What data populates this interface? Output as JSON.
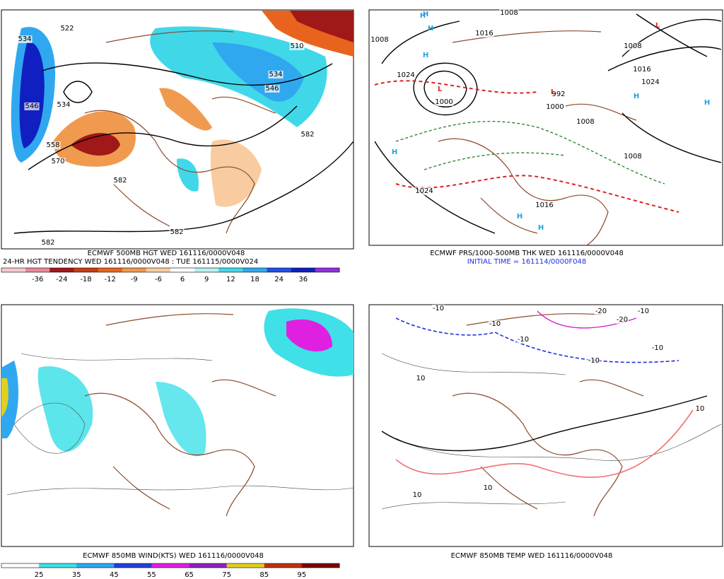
{
  "panels": [
    {
      "captions": [
        "ECMWF 500MB HGT WED 161116/0000V048",
        "24-HR HGT TENDENCY WED 161116/0000V048 : TUE 161115/0000V024"
      ],
      "colorbar": {
        "labels": [
          "-36",
          "-24",
          "-18",
          "-12",
          "-9",
          "-6",
          "6",
          "9",
          "12",
          "18",
          "24",
          "36"
        ],
        "colors": [
          "#f7c8d0",
          "#e8889a",
          "#a01818",
          "#c83c14",
          "#e8641e",
          "#f09a50",
          "#f8cca0",
          "#ffffff",
          "#b8f0f0",
          "#40d8e8",
          "#30a8f0",
          "#2050e8",
          "#1020c0",
          "#9030e0"
        ]
      },
      "contour_labels": [
        "534",
        "522",
        "534",
        "546",
        "558",
        "570",
        "582",
        "582",
        "582",
        "510",
        "534",
        "546",
        "582"
      ]
    },
    {
      "captions": [
        "ECMWF PRS/1000-500MB THK WED 161116/0000V048",
        "INITIAL TIME = 161114/0000F048"
      ],
      "contour_labels": [
        "1008",
        "1008",
        "1016",
        "1024",
        "1000",
        "992",
        "1000",
        "1008",
        "1016",
        "1024",
        "1008",
        "1024",
        "1016",
        "1008"
      ],
      "centers": [
        "H",
        "H",
        "H",
        "H",
        "H",
        "L",
        "L",
        "L",
        "H",
        "H",
        "H",
        "H"
      ]
    },
    {
      "captions": [
        "ECMWF 850MB WIND(KTS) WED 161116/0000V048"
      ],
      "colorbar": {
        "labels": [
          "25",
          "35",
          "45",
          "55",
          "65",
          "75",
          "85",
          "95"
        ],
        "colors": [
          "#ffffff",
          "#40e0e8",
          "#30a8f0",
          "#2040d8",
          "#e020e0",
          "#9020c0",
          "#e0d020",
          "#c03010",
          "#800000"
        ]
      }
    },
    {
      "captions": [
        "ECMWF 850MB TEMP WED 161116/0000V048"
      ],
      "contour_labels": [
        "-10",
        "-10",
        "-20",
        "-20",
        "-10",
        "-10",
        "10",
        "10",
        "10",
        "10",
        "-10",
        "-10"
      ]
    }
  ]
}
